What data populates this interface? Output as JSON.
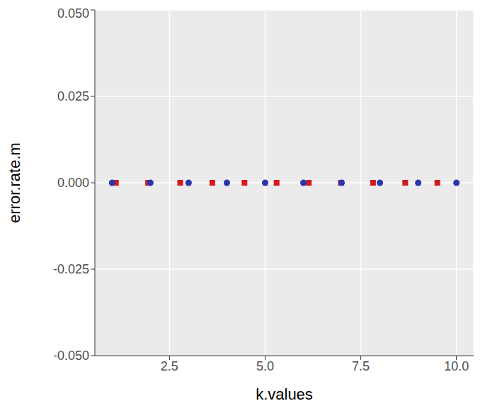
{
  "chart_data": {
    "type": "scatter",
    "x_label": "k.values",
    "y_label": "error.rate.m",
    "xlim": [
      0.55,
      10.45
    ],
    "ylim": [
      -0.05,
      0.05
    ],
    "xticks": [
      2.5,
      {
        "value": 5,
        "label": "5.0"
      },
      7.5,
      {
        "value": 10,
        "label": "10.0"
      }
    ],
    "yticks": [
      {
        "value": -0.05,
        "label": "-0.050"
      },
      {
        "value": -0.025,
        "label": "-0.025"
      },
      {
        "value": 0,
        "label": "0.000"
      },
      {
        "value": 0.025,
        "label": "0.025"
      },
      {
        "value": 0.05,
        "label": "0.050"
      }
    ],
    "grid": true,
    "series": [
      {
        "color": "#d7191c",
        "marker": "square",
        "x": [
          1.1,
          1.94,
          2.78,
          3.62,
          4.46,
          5.3,
          6.14,
          6.98,
          7.82,
          8.66,
          9.5
        ],
        "values": [
          0,
          0,
          0,
          0,
          0,
          0,
          0,
          0,
          0,
          0,
          0
        ]
      },
      {
        "color": "#2b35b0",
        "marker": "circle",
        "x": [
          1,
          2,
          3,
          4,
          5,
          6,
          7,
          8,
          9,
          10
        ],
        "values": [
          0,
          0,
          0,
          0,
          0,
          0,
          0,
          0,
          0,
          0
        ]
      }
    ]
  }
}
